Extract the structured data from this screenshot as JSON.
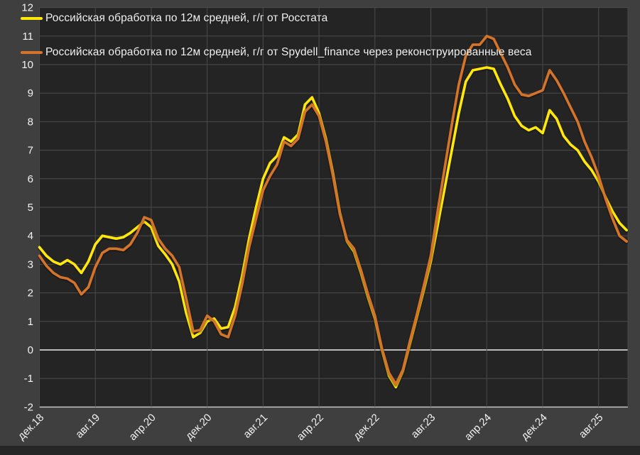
{
  "colors": {
    "outer_background": "#3f3f3f",
    "plot_background": "#242424",
    "gridline": "#4b4b4b",
    "zero_line": "#ececec",
    "axis_line": "#cfcfcf",
    "tick_text": "#f2f2f2",
    "bottom_strip": "#262626"
  },
  "chart_data": {
    "type": "line",
    "title": "",
    "xlabel": "",
    "ylabel": "",
    "ylim": [
      -2,
      12
    ],
    "y_tick_step": 1,
    "y_tick_labels": [
      "-2",
      "-1",
      "0",
      "1",
      "2",
      "3",
      "4",
      "5",
      "6",
      "7",
      "8",
      "9",
      "10",
      "11",
      "12"
    ],
    "grid": true,
    "zero_line_highlighted": true,
    "x_start_month": "дек.18",
    "x_tick_interval_months": 8,
    "x_tick_labels": [
      "дек.18",
      "авг.19",
      "апр.20",
      "дек.20",
      "авг.21",
      "апр.22",
      "дек.22",
      "авг.23",
      "апр.24",
      "дек.24",
      "авг.25"
    ],
    "x_tick_label_rotation_deg": -45,
    "months_total": 85,
    "legend_position": "top-left-inside",
    "series": [
      {
        "name": "Российская обработка по 12м средней, г/г от Росстата",
        "color": "#ffe70a",
        "values": [
          3.6,
          3.3,
          3.1,
          3.0,
          3.15,
          3.0,
          2.7,
          3.1,
          3.7,
          4.0,
          3.95,
          3.9,
          3.95,
          4.1,
          4.3,
          4.5,
          4.3,
          3.65,
          3.35,
          3.0,
          2.4,
          1.3,
          0.45,
          0.6,
          1.0,
          1.1,
          0.75,
          0.8,
          1.5,
          2.6,
          3.9,
          5.0,
          6.0,
          6.55,
          6.8,
          7.45,
          7.3,
          7.55,
          8.6,
          8.85,
          8.3,
          7.4,
          6.2,
          4.8,
          3.8,
          3.45,
          2.7,
          1.85,
          1.1,
          0.0,
          -0.9,
          -1.3,
          -0.75,
          0.2,
          1.15,
          2.1,
          3.1,
          4.4,
          5.7,
          7.0,
          8.3,
          9.4,
          9.8,
          9.85,
          9.9,
          9.85,
          9.3,
          8.8,
          8.2,
          7.85,
          7.7,
          7.8,
          7.6,
          8.4,
          8.1,
          7.5,
          7.2,
          7.0,
          6.6,
          6.3,
          5.9,
          5.35,
          4.85,
          4.45,
          4.2
        ]
      },
      {
        "name": "Российская обработка по 12м средней, г/г от Spydell_finance через реконструированные веса",
        "color": "#d4732b",
        "values": [
          3.3,
          2.95,
          2.7,
          2.55,
          2.5,
          2.35,
          1.95,
          2.2,
          2.9,
          3.4,
          3.55,
          3.55,
          3.5,
          3.7,
          4.1,
          4.65,
          4.55,
          3.9,
          3.55,
          3.3,
          2.9,
          1.8,
          0.65,
          0.7,
          1.2,
          1.0,
          0.55,
          0.45,
          1.2,
          2.3,
          3.6,
          4.6,
          5.6,
          6.1,
          6.5,
          7.3,
          7.15,
          7.4,
          8.35,
          8.6,
          8.2,
          7.3,
          6.1,
          4.75,
          3.85,
          3.55,
          2.8,
          1.95,
          1.2,
          0.05,
          -0.8,
          -1.2,
          -0.7,
          0.3,
          1.25,
          2.25,
          3.3,
          4.9,
          6.4,
          7.9,
          9.3,
          10.3,
          10.7,
          10.7,
          11.0,
          10.9,
          10.4,
          9.9,
          9.3,
          8.95,
          8.9,
          9.0,
          9.1,
          9.8,
          9.45,
          9.0,
          8.5,
          8.0,
          7.3,
          6.75,
          6.1,
          5.3,
          4.6,
          4.0,
          3.8
        ]
      }
    ]
  }
}
